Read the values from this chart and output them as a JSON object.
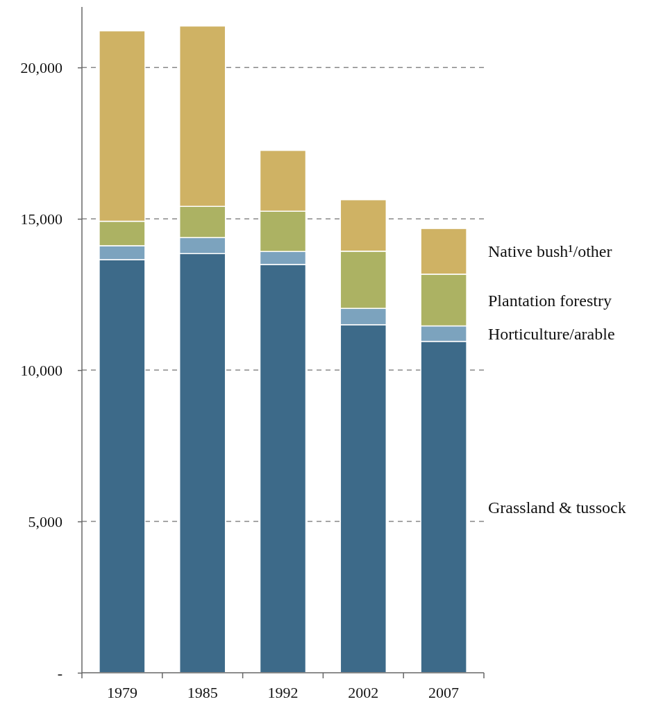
{
  "chart_data": {
    "type": "bar",
    "stacked": true,
    "categories": [
      "1979",
      "1985",
      "1992",
      "2002",
      "2007"
    ],
    "series": [
      {
        "name": "Grassland & tussock",
        "color": "#3d6a89",
        "values": [
          13650,
          13850,
          13490,
          11500,
          10950
        ]
      },
      {
        "name": "Horticulture/arable",
        "color": "#7ca3be",
        "values": [
          460,
          530,
          430,
          540,
          510
        ]
      },
      {
        "name": "Plantation forestry",
        "color": "#acb263",
        "values": [
          810,
          1030,
          1330,
          1890,
          1710
        ]
      },
      {
        "name": "Native bush¹/other",
        "color": "#cfb264",
        "values": [
          6290,
          5960,
          2010,
          1700,
          1510
        ]
      }
    ],
    "ylim": [
      0,
      22000
    ],
    "yticks": [
      {
        "value": 0,
        "label": "-"
      },
      {
        "value": 5000,
        "label": "5,000"
      },
      {
        "value": 10000,
        "label": "10,000"
      },
      {
        "value": 15000,
        "label": "15,000"
      },
      {
        "value": 20000,
        "label": "20,000"
      }
    ],
    "grid": "y",
    "legend": "right"
  }
}
